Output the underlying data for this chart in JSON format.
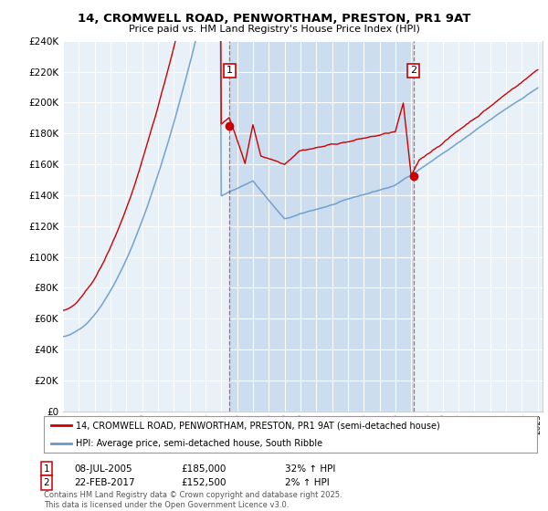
{
  "title1": "14, CROMWELL ROAD, PENWORTHAM, PRESTON, PR1 9AT",
  "title2": "Price paid vs. HM Land Registry's House Price Index (HPI)",
  "legend_line1": "14, CROMWELL ROAD, PENWORTHAM, PRESTON, PR1 9AT (semi-detached house)",
  "legend_line2": "HPI: Average price, semi-detached house, South Ribble",
  "annotation1": {
    "label": "1",
    "date": "08-JUL-2005",
    "price": "£185,000",
    "hpi": "32% ↑ HPI"
  },
  "annotation2": {
    "label": "2",
    "date": "22-FEB-2017",
    "price": "£152,500",
    "hpi": "2% ↑ HPI"
  },
  "footnote": "Contains HM Land Registry data © Crown copyright and database right 2025.\nThis data is licensed under the Open Government Licence v3.0.",
  "background_color": "#ffffff",
  "plot_bg_color": "#e8f0f8",
  "shaded_region_color": "#ccddf0",
  "red_color": "#cc0000",
  "blue_color": "#6699cc",
  "ylim_min": 0,
  "ylim_max": 240000,
  "ytick_step": 20000,
  "year_start": 1995,
  "year_end": 2025,
  "sale1_year": 2005.52,
  "sale1_price": 185000,
  "sale2_year": 2017.14,
  "sale2_price": 152500
}
